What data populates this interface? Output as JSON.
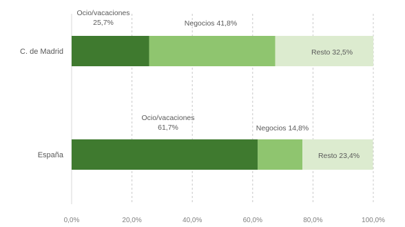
{
  "chart_data": {
    "type": "bar",
    "orientation": "horizontal",
    "stacked": true,
    "categories": [
      "C. de Madrid",
      "España"
    ],
    "series": [
      {
        "name": "Ocio/vacaciones",
        "values": [
          25.7,
          61.7
        ],
        "color": "#3f7a2f"
      },
      {
        "name": "Negocios",
        "values": [
          41.8,
          14.8
        ],
        "color": "#8fc56f"
      },
      {
        "name": "Resto",
        "values": [
          32.5,
          23.4
        ],
        "color": "#dcebcf"
      }
    ],
    "data_labels": [
      [
        "Ocio/vacaciones\n25,7%",
        "Negocios 41,8%",
        "Resto 32,5%"
      ],
      [
        "Ocio/vacaciones\n61,7%",
        "Negocios 14,8%",
        "Resto 23,4%"
      ]
    ],
    "xlim": [
      0,
      100
    ],
    "x_ticks": [
      0,
      20,
      40,
      60,
      80,
      100
    ],
    "x_tick_labels": [
      "0,0%",
      "20,0%",
      "40,0%",
      "60,0%",
      "80,0%",
      "100,0%"
    ],
    "grid": true,
    "legend": "none",
    "title": ""
  }
}
